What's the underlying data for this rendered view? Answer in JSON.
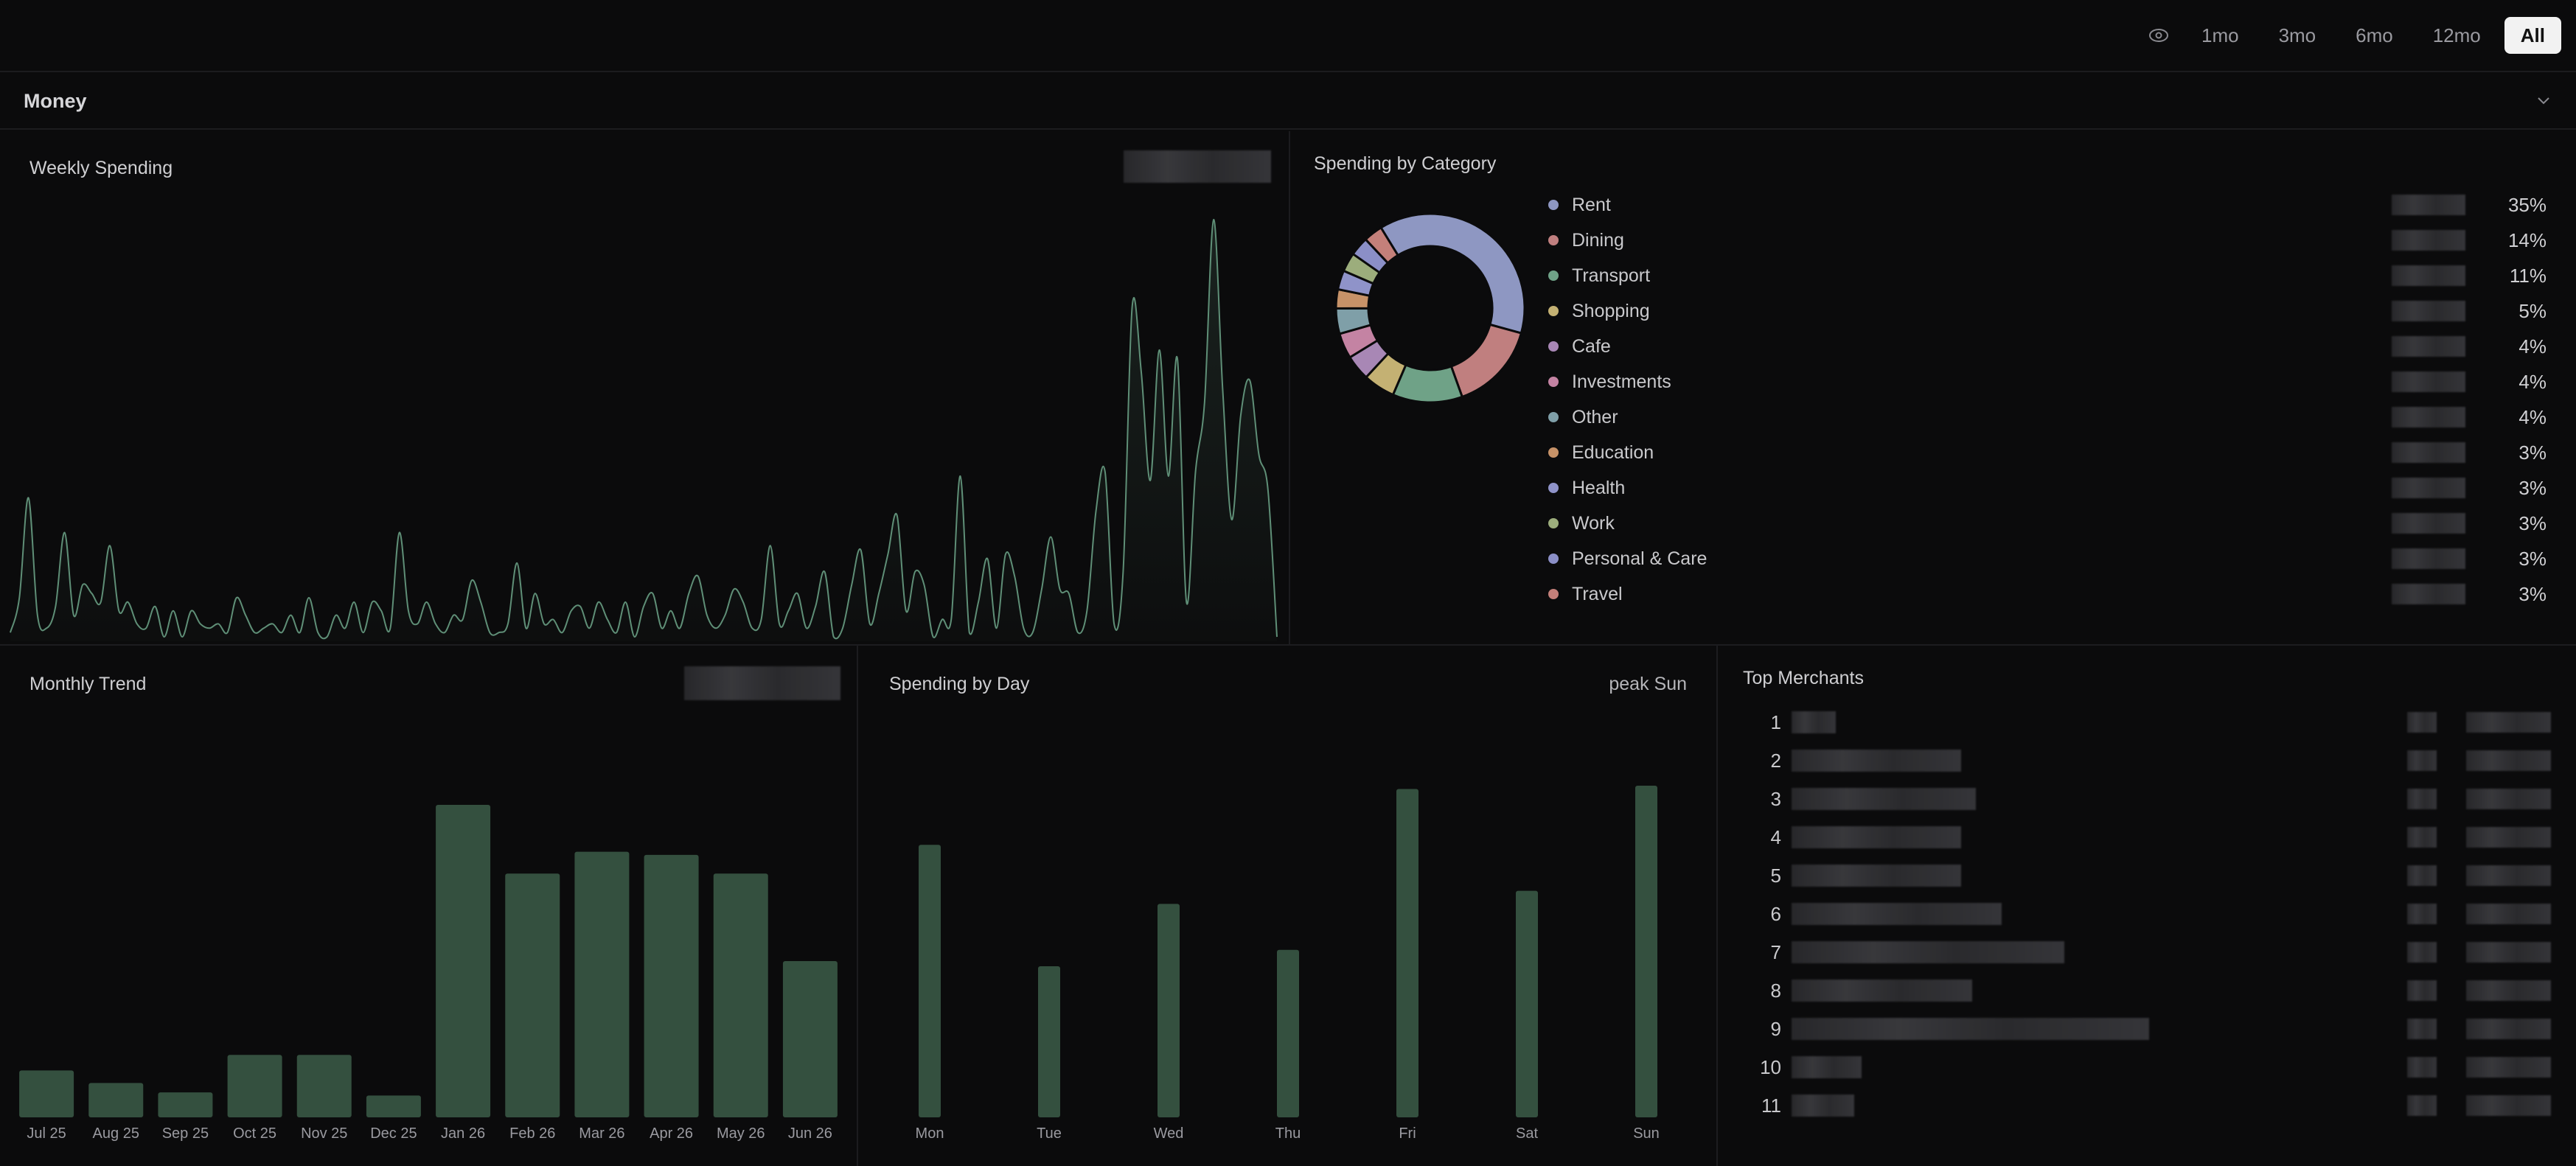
{
  "toolbar": {
    "eye_icon": "eye-icon",
    "ranges": [
      {
        "label": "1mo",
        "active": false
      },
      {
        "label": "3mo",
        "active": false
      },
      {
        "label": "6mo",
        "active": false
      },
      {
        "label": "12mo",
        "active": false
      },
      {
        "label": "All",
        "active": true
      }
    ]
  },
  "section": {
    "title": "Money",
    "collapse_icon": "chevron-down-icon"
  },
  "weekly": {
    "title": "Weekly Spending",
    "amount_hidden": true,
    "line_color": "#5f8f77"
  },
  "category": {
    "title": "Spending by Category",
    "items": [
      {
        "name": "Rent",
        "pct": "35%",
        "color": "#8e97c2"
      },
      {
        "name": "Dining",
        "pct": "14%",
        "color": "#c07f7f"
      },
      {
        "name": "Transport",
        "pct": "11%",
        "color": "#6fa287"
      },
      {
        "name": "Shopping",
        "pct": "5%",
        "color": "#c4b173"
      },
      {
        "name": "Cafe",
        "pct": "4%",
        "color": "#a887b5"
      },
      {
        "name": "Investments",
        "pct": "4%",
        "color": "#c483a3"
      },
      {
        "name": "Other",
        "pct": "4%",
        "color": "#7f9fa8"
      },
      {
        "name": "Education",
        "pct": "3%",
        "color": "#c79268"
      },
      {
        "name": "Health",
        "pct": "3%",
        "color": "#8f93c9"
      },
      {
        "name": "Work",
        "pct": "3%",
        "color": "#9cad7c"
      },
      {
        "name": "Personal & Care",
        "pct": "3%",
        "color": "#8b8fc7"
      },
      {
        "name": "Travel",
        "pct": "3%",
        "color": "#c4807a"
      }
    ]
  },
  "monthly": {
    "title": "Monthly Trend",
    "amount_hidden": true
  },
  "byday": {
    "title": "Spending by Day",
    "peak": "peak Sun"
  },
  "merchants": {
    "title": "Top Merchants",
    "ranks": [
      "1",
      "2",
      "3",
      "4",
      "5",
      "6",
      "7",
      "8",
      "9",
      "10",
      "11"
    ]
  },
  "bar_color": "#34503f",
  "chart_data": [
    {
      "type": "area",
      "title": "Weekly Spending",
      "note": "values in relative units (axis not shown)",
      "values": [
        2,
        10,
        33,
        6,
        3,
        8,
        25,
        6,
        13,
        11,
        9,
        22,
        7,
        9,
        4,
        3,
        8,
        1,
        7,
        1,
        7,
        4,
        3,
        4,
        2,
        10,
        6,
        2,
        3,
        4,
        2,
        6,
        2,
        10,
        2,
        1,
        6,
        3,
        9,
        2,
        9,
        7,
        3,
        25,
        7,
        4,
        9,
        4,
        2,
        6,
        5,
        14,
        9,
        2,
        2,
        4,
        18,
        3,
        11,
        4,
        5,
        2,
        7,
        8,
        3,
        9,
        5,
        2,
        9,
        1,
        8,
        11,
        3,
        7,
        3,
        11,
        15,
        6,
        3,
        6,
        12,
        9,
        3,
        5,
        22,
        4,
        7,
        11,
        3,
        8,
        16,
        1,
        3,
        13,
        21,
        4,
        11,
        20,
        29,
        7,
        16,
        13,
        1,
        5,
        5,
        38,
        2,
        9,
        19,
        3,
        20,
        15,
        3,
        2,
        12,
        24,
        12,
        11,
        2,
        7,
        30,
        39,
        4,
        16,
        77,
        62,
        37,
        67,
        38,
        65,
        9,
        39,
        55,
        97,
        58,
        28,
        52,
        60,
        43,
        35,
        1
      ]
    },
    {
      "type": "pie",
      "title": "Spending by Category",
      "categories": [
        "Rent",
        "Dining",
        "Transport",
        "Shopping",
        "Cafe",
        "Investments",
        "Other",
        "Education",
        "Health",
        "Work",
        "Personal & Care",
        "Travel"
      ],
      "values": [
        35,
        14,
        11,
        5,
        4,
        4,
        4,
        3,
        3,
        3,
        3,
        3
      ]
    },
    {
      "type": "bar",
      "title": "Monthly Trend",
      "categories": [
        "Jul 25",
        "Aug 25",
        "Sep 25",
        "Oct 25",
        "Nov 25",
        "Dec 25",
        "Jan 26",
        "Feb 26",
        "Mar 26",
        "Apr 26",
        "May 26",
        "Jun 26"
      ],
      "values": [
        15,
        11,
        8,
        20,
        20,
        7,
        100,
        78,
        85,
        84,
        78,
        50
      ]
    },
    {
      "type": "bar",
      "title": "Spending by Day",
      "categories": [
        "Mon",
        "Tue",
        "Wed",
        "Thu",
        "Fri",
        "Sat",
        "Sun"
      ],
      "values": [
        83,
        46,
        65,
        51,
        100,
        69,
        101
      ]
    }
  ]
}
